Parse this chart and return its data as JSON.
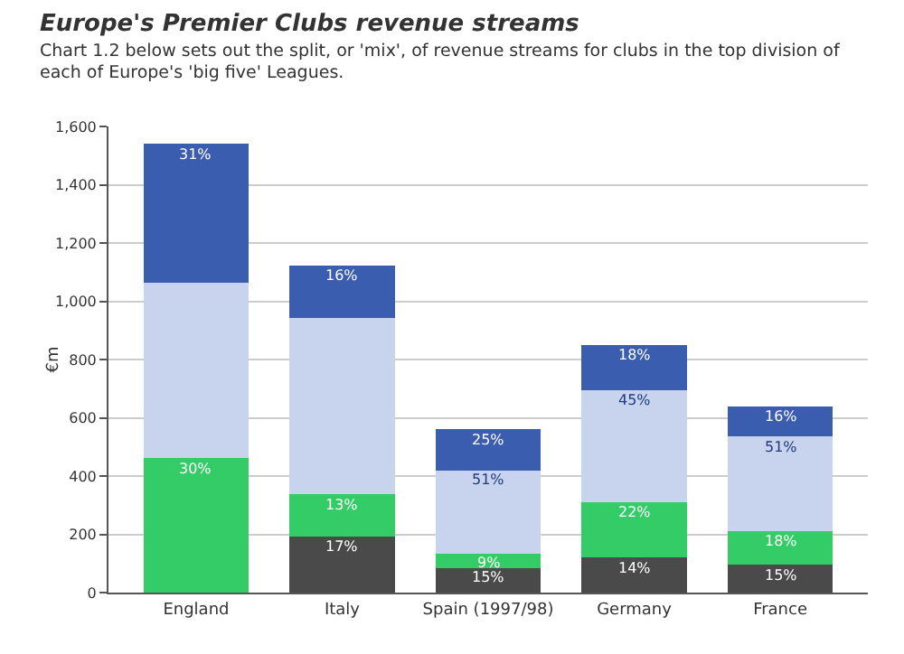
{
  "chart_data": {
    "type": "bar",
    "stacked": true,
    "title": "Europe's Premier Clubs revenue streams",
    "subtitle": "Chart 1.2 below sets out the split, or 'mix', of revenue streams for clubs in the top division of each of Europe's 'big five' Leagues.",
    "ylabel": "€m",
    "categories": [
      "England",
      "Italy",
      "Spain (1997/98)",
      "Germany",
      "France"
    ],
    "series": [
      {
        "color": "#4a4a4a",
        "values": [
          0,
          191,
          84,
          120,
          96
        ]
      },
      {
        "color": "#33cc66",
        "values": [
          462,
          146,
          50,
          189,
          115
        ]
      },
      {
        "color": "#c8d4ee",
        "values": [
          601,
          607,
          286,
          387,
          325
        ]
      },
      {
        "color": "#3a5db0",
        "values": [
          477,
          180,
          140,
          155,
          102
        ]
      }
    ],
    "annotations": [
      {
        "text": "17%",
        "x": "Italy",
        "y": 191
      },
      {
        "text": "15%",
        "x": "Spain (1997/98)",
        "y": 84
      },
      {
        "text": "14%",
        "x": "Germany",
        "y": 120
      },
      {
        "text": "15%",
        "x": "France",
        "y": 96
      },
      {
        "text": "30%",
        "x": "England",
        "y": 462
      },
      {
        "text": "13%",
        "x": "Italy",
        "y": 337
      },
      {
        "text": "9%",
        "x": "Spain (1997/98)",
        "y": 134
      },
      {
        "text": "22%",
        "x": "Germany",
        "y": 309
      },
      {
        "text": "18%",
        "x": "France",
        "y": 211
      },
      {
        "text": "51%",
        "x": "Spain (1997/98)",
        "y": 420
      },
      {
        "text": "45%",
        "x": "Germany",
        "y": 696
      },
      {
        "text": "51%",
        "x": "France",
        "y": 536
      },
      {
        "text": "31%",
        "x": "England",
        "y": 1540
      },
      {
        "text": "16%",
        "x": "Italy",
        "y": 1124
      },
      {
        "text": "25%",
        "x": "Spain (1997/98)",
        "y": 560
      },
      {
        "text": "18%",
        "x": "Germany",
        "y": 851
      },
      {
        "text": "16%",
        "x": "France",
        "y": 638
      }
    ],
    "ylim": [
      0,
      1600
    ],
    "yticks": [
      0,
      200,
      400,
      600,
      800,
      {
        "value": 1000,
        "label": "1,000"
      },
      {
        "value": 1200,
        "label": "1,200"
      },
      {
        "value": 1400,
        "label": "1,400"
      },
      {
        "value": 1600,
        "label": "1,600"
      }
    ],
    "grid": true
  }
}
